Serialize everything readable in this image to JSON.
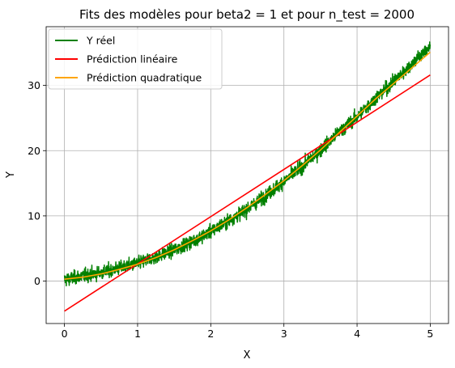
{
  "chart_data": {
    "type": "line",
    "title": "Fits des modèles pour beta2 = 1 et pour n_test = 2000",
    "xlabel": "X",
    "ylabel": "Y",
    "xlim": [
      -0.25,
      5.25
    ],
    "ylim": [
      -6.5,
      39
    ],
    "xticks": [
      0,
      1,
      2,
      3,
      4,
      5
    ],
    "yticks": [
      0,
      10,
      20,
      30
    ],
    "grid": true,
    "legend_position": "top-left",
    "n_points": 2000,
    "series": [
      {
        "name": "Y réel",
        "color": "#008000",
        "kind": "noisy",
        "x": [
          0,
          0.25,
          0.5,
          0.75,
          1,
          1.25,
          1.5,
          1.75,
          2,
          2.25,
          2.5,
          2.75,
          3,
          3.25,
          3.5,
          3.75,
          4,
          4.25,
          4.5,
          4.75,
          5
        ],
        "y": [
          0.2,
          0.8,
          1.3,
          2.0,
          2.7,
          3.7,
          4.8,
          6.1,
          7.6,
          9.3,
          11.1,
          13.1,
          15.3,
          17.6,
          20.1,
          22.8,
          25.2,
          28.0,
          30.6,
          33.3,
          36.0
        ],
        "noise_amplitude": 1.3
      },
      {
        "name": "Prédiction linéaire",
        "color": "#ff0000",
        "kind": "line",
        "x": [
          0,
          5
        ],
        "y": [
          -4.6,
          31.6
        ]
      },
      {
        "name": "Prédiction quadratique",
        "color": "#ffa500",
        "kind": "line",
        "x": [
          0,
          0.25,
          0.5,
          0.75,
          1,
          1.25,
          1.5,
          1.75,
          2,
          2.25,
          2.5,
          2.75,
          3,
          3.25,
          3.5,
          3.75,
          4,
          4.25,
          4.5,
          4.75,
          5
        ],
        "y": [
          0.3,
          0.6,
          1.1,
          1.8,
          2.6,
          3.6,
          4.8,
          6.2,
          7.7,
          9.4,
          11.3,
          13.3,
          15.4,
          17.7,
          20.1,
          22.7,
          25.3,
          27.9,
          30.3,
          32.7,
          35.1
        ]
      }
    ]
  }
}
